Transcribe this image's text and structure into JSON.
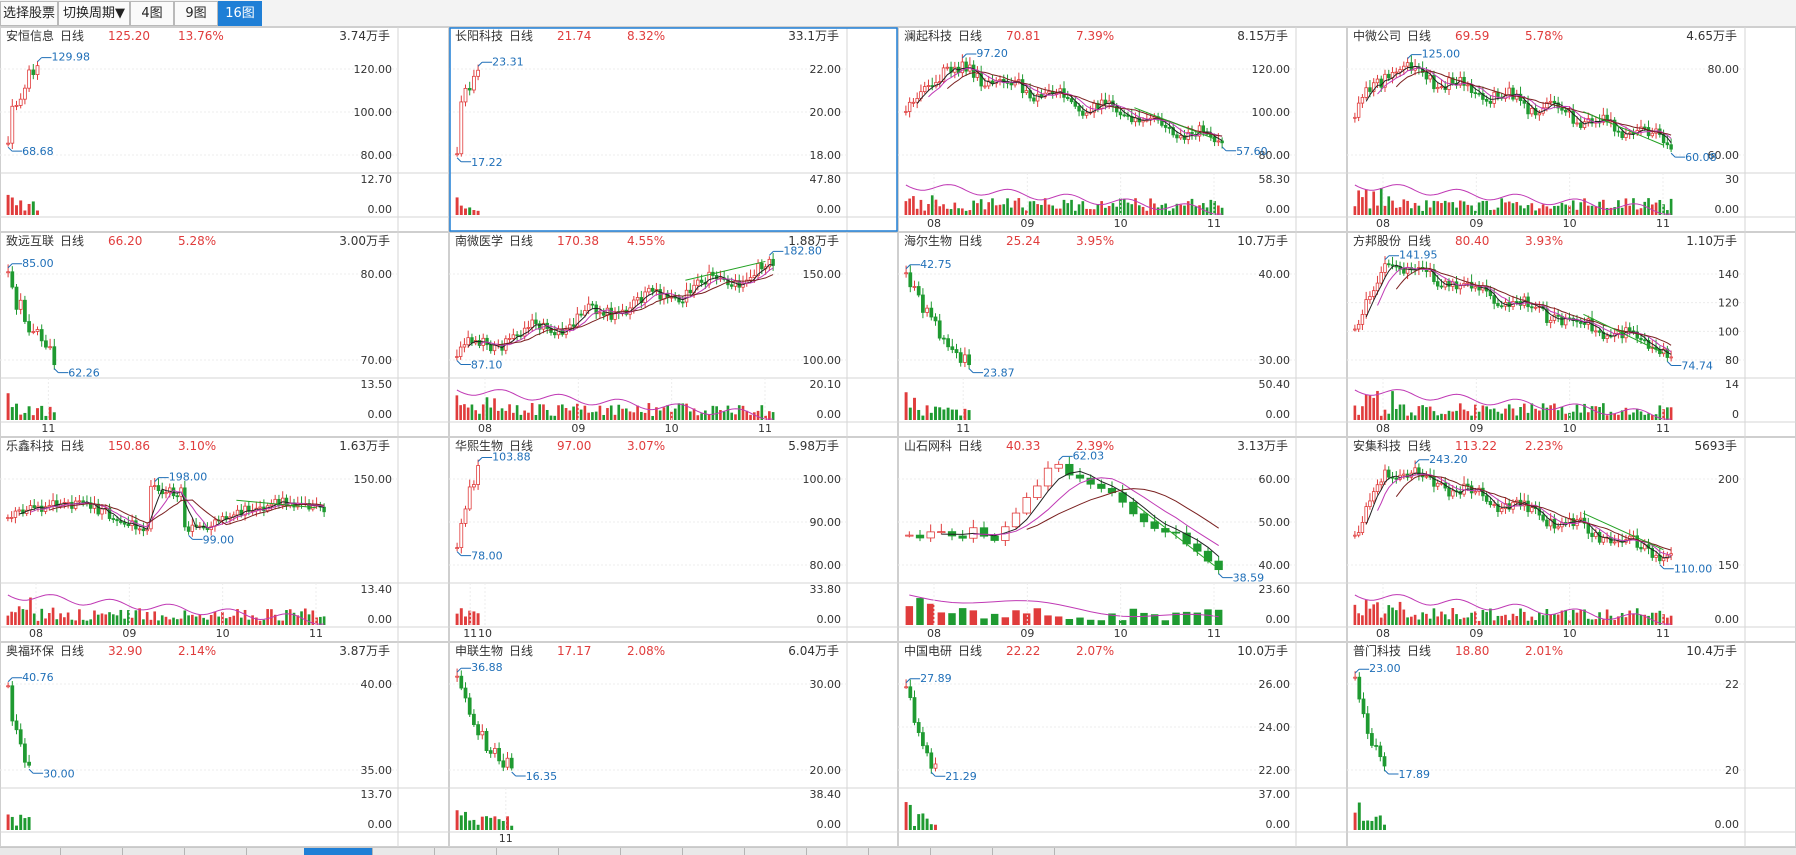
{
  "toolbar": {
    "select_stock": "选择股票",
    "switch_period": "切换周期▼",
    "layouts": [
      "4图",
      "9图",
      "16图"
    ],
    "active_layout": 2
  },
  "colors": {
    "up": "#e03c3c",
    "down": "#1f9a31",
    "blue": "#1f6fb8",
    "ma1": "#222222",
    "ma2": "#c03ab5",
    "ma3": "#7a2020",
    "ma4": "#22a122",
    "grid": "#d6d6d6",
    "select": "#1f7fd6"
  },
  "panels": [
    {
      "name": "安恒信息",
      "period": "日线",
      "price": "125.20",
      "change": "13.76%",
      "vol": "3.74万手",
      "yticks": [
        "120.00",
        "100.00",
        "80.00"
      ],
      "vticks": [
        "12.70",
        "0.00"
      ],
      "hi": "129.98",
      "lo": "68.68",
      "xlabels": [],
      "bars": 8,
      "shape": "surge",
      "selected": false
    },
    {
      "name": "长阳科技",
      "period": "日线",
      "price": "21.74",
      "change": "8.32%",
      "vol": "33.1万手",
      "yticks": [
        "22.00",
        "20.00",
        "18.00"
      ],
      "vticks": [
        "47.80",
        "0.00"
      ],
      "hi": "23.31",
      "lo": "17.22",
      "xlabels": [],
      "bars": 6,
      "shape": "surge",
      "selected": true
    },
    {
      "name": "澜起科技",
      "period": "日线",
      "price": "70.81",
      "change": "7.39%",
      "vol": "8.15万手",
      "yticks": [
        "120.00",
        "100.00",
        "80.00"
      ],
      "vticks": [
        "58.30",
        "0.00"
      ],
      "hi": "97.20",
      "lo": "57.60",
      "xlabels": [
        "08",
        "09",
        "10",
        "11"
      ],
      "bars": 85,
      "shape": "decline",
      "selected": false
    },
    {
      "name": "中微公司",
      "period": "日线",
      "price": "69.59",
      "change": "5.78%",
      "vol": "4.65万手",
      "yticks": [
        "80.00",
        "60.00"
      ],
      "vticks": [
        "30",
        "0.00"
      ],
      "hi": "125.00",
      "lo": "60.08",
      "xlabels": [
        "08",
        "09",
        "10",
        "11"
      ],
      "bars": 85,
      "shape": "decline",
      "selected": false
    },
    {
      "name": "致远互联",
      "period": "日线",
      "price": "66.20",
      "change": "5.28%",
      "vol": "3.00万手",
      "yticks": [
        "80.00",
        "70.00"
      ],
      "vticks": [
        "13.50",
        "0.00"
      ],
      "hi": "85.00",
      "lo": "62.26",
      "xlabels": [
        "11"
      ],
      "bars": 12,
      "shape": "fall",
      "selected": false
    },
    {
      "name": "南微医学",
      "period": "日线",
      "price": "170.38",
      "change": "4.55%",
      "vol": "1.88万手",
      "yticks": [
        "150.00",
        "100.00"
      ],
      "vticks": [
        "20.10",
        "0.00"
      ],
      "hi": "182.80",
      "lo": "87.10",
      "xlabels": [
        "08",
        "09",
        "10",
        "11"
      ],
      "bars": 85,
      "shape": "rise",
      "selected": false
    },
    {
      "name": "海尔生物",
      "period": "日线",
      "price": "25.24",
      "change": "3.95%",
      "vol": "10.7万手",
      "yticks": [
        "40.00",
        "30.00"
      ],
      "vticks": [
        "50.40",
        "0.00"
      ],
      "hi": "42.75",
      "lo": "23.87",
      "xlabels": [
        "11"
      ],
      "bars": 16,
      "shape": "fall",
      "selected": false
    },
    {
      "name": "方邦股份",
      "period": "日线",
      "price": "80.40",
      "change": "3.93%",
      "vol": "1.10万手",
      "yticks": [
        "140",
        "120",
        "100",
        "80"
      ],
      "vticks": [
        "14",
        "0"
      ],
      "hi": "141.95",
      "lo": "74.74",
      "xlabels": [
        "08",
        "09",
        "10",
        "11"
      ],
      "bars": 85,
      "shape": "peakdecline",
      "selected": false
    },
    {
      "name": "乐鑫科技",
      "period": "日线",
      "price": "150.86",
      "change": "3.10%",
      "vol": "1.63万手",
      "yticks": [
        "150.00"
      ],
      "vticks": [
        "13.40",
        "0.00"
      ],
      "hi": "198.00",
      "lo": "99.00",
      "xlabels": [
        "08",
        "09",
        "10",
        "11"
      ],
      "bars": 85,
      "shape": "wave",
      "selected": false
    },
    {
      "name": "华熙生物",
      "period": "日线",
      "price": "97.00",
      "change": "3.07%",
      "vol": "5.98万手",
      "yticks": [
        "100.00",
        "90.00",
        "80.00"
      ],
      "vticks": [
        "33.80",
        "0.00"
      ],
      "hi": "103.88",
      "lo": "78.00",
      "xlabels": [
        "10",
        "11"
      ],
      "bars": 6,
      "shape": "surge",
      "selected": false
    },
    {
      "name": "山石网科",
      "period": "日线",
      "price": "40.33",
      "change": "2.39%",
      "vol": "3.13万手",
      "yticks": [
        "60.00",
        "50.00",
        "40.00"
      ],
      "vticks": [
        "23.60",
        "0.00"
      ],
      "hi": "62.03",
      "lo": "38.59",
      "xlabels": [
        "08",
        "09",
        "10",
        "11"
      ],
      "bars": 30,
      "shape": "spike",
      "selected": false
    },
    {
      "name": "安集科技",
      "period": "日线",
      "price": "113.22",
      "change": "2.23%",
      "vol": "5693手",
      "yticks": [
        "200",
        "150"
      ],
      "vticks": [
        "",
        "0.00"
      ],
      "hi": "243.20",
      "lo": "110.00",
      "xlabels": [
        "08",
        "09",
        "10",
        "11"
      ],
      "bars": 85,
      "shape": "peakdecline",
      "selected": false
    },
    {
      "name": "奥福环保",
      "period": "日线",
      "price": "32.90",
      "change": "2.14%",
      "vol": "3.87万手",
      "yticks": [
        "40.00",
        "35.00"
      ],
      "vticks": [
        "13.70",
        "0.00"
      ],
      "hi": "40.76",
      "lo": "30.00",
      "xlabels": [],
      "bars": 6,
      "shape": "fall",
      "selected": false
    },
    {
      "name": "申联生物",
      "period": "日线",
      "price": "17.17",
      "change": "2.08%",
      "vol": "6.04万手",
      "yticks": [
        "30.00",
        "20.00"
      ],
      "vticks": [
        "38.40",
        "0.00"
      ],
      "hi": "36.88",
      "lo": "16.35",
      "xlabels": [
        "11"
      ],
      "bars": 14,
      "shape": "fall",
      "selected": false
    },
    {
      "name": "中国电研",
      "period": "日线",
      "price": "22.22",
      "change": "2.07%",
      "vol": "10.0万手",
      "yticks": [
        "26.00",
        "24.00",
        "22.00"
      ],
      "vticks": [
        "37.00",
        "0.00"
      ],
      "hi": "27.89",
      "lo": "21.29",
      "xlabels": [],
      "bars": 8,
      "shape": "fall",
      "selected": false
    },
    {
      "name": "普门科技",
      "period": "日线",
      "price": "18.80",
      "change": "2.01%",
      "vol": "10.4万手",
      "yticks": [
        "22",
        "20"
      ],
      "vticks": [
        "",
        "0.00"
      ],
      "hi": "23.00",
      "lo": "17.89",
      "xlabels": [],
      "bars": 8,
      "shape": "fall",
      "selected": false
    }
  ]
}
